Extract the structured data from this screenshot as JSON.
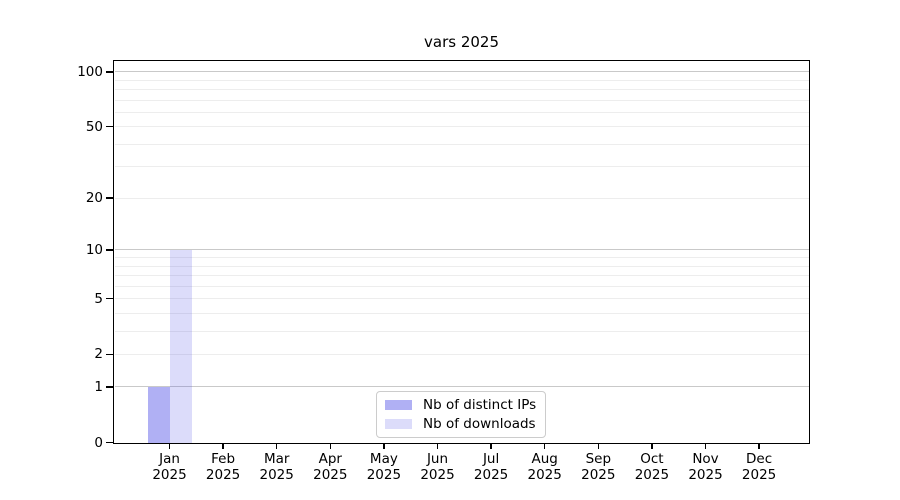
{
  "figure": {
    "background": "#ffffff"
  },
  "chart_data": {
    "type": "bar",
    "title": "vars 2025",
    "xlabel": "",
    "ylabel": "",
    "categories": [
      "Jan",
      "Feb",
      "Mar",
      "Apr",
      "May",
      "Jun",
      "Jul",
      "Aug",
      "Sep",
      "Oct",
      "Nov",
      "Dec"
    ],
    "category_year": "2025",
    "series": [
      {
        "name": "Nb of distinct IPs",
        "color": "rgba(80,80,230,0.45)",
        "values": [
          1,
          0,
          0,
          0,
          0,
          0,
          0,
          0,
          0,
          0,
          0,
          0
        ]
      },
      {
        "name": "Nb of downloads",
        "color": "rgba(80,80,230,0.20)",
        "values": [
          10,
          0,
          0,
          0,
          0,
          0,
          0,
          0,
          0,
          0,
          0,
          0
        ]
      }
    ],
    "yscale": "log1p",
    "ylim": [
      0,
      114
    ],
    "yticks": [
      0,
      1,
      2,
      5,
      10,
      20,
      50,
      100
    ],
    "grid": {
      "major_values": [
        1,
        10,
        100
      ],
      "minor_values": [
        2,
        3,
        4,
        5,
        6,
        7,
        8,
        9,
        20,
        30,
        40,
        50,
        60,
        70,
        80,
        90
      ],
      "major_color": "#c9c9c9",
      "minor_color": "#ededed"
    },
    "legend": {
      "position": "lower-center"
    },
    "axis_color": "#000000"
  }
}
